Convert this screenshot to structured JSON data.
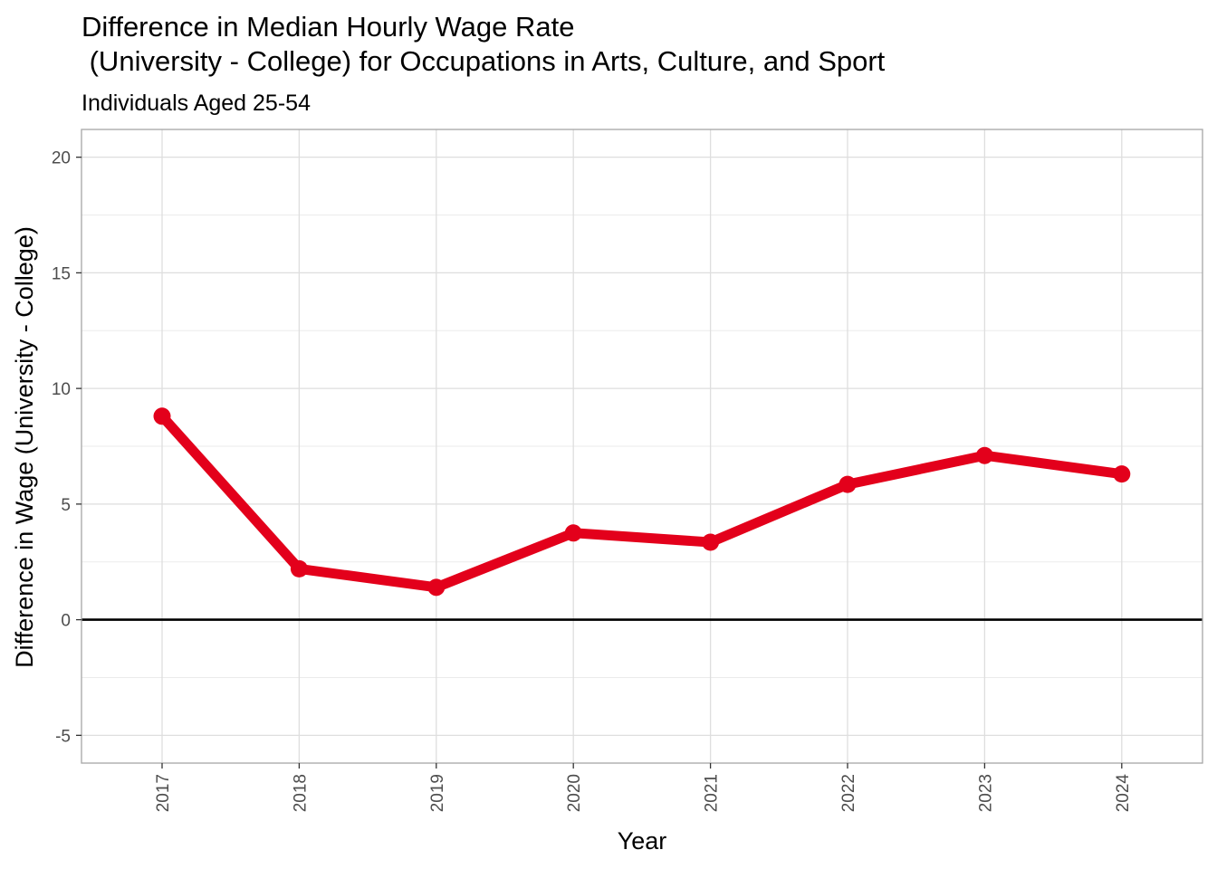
{
  "chart_data": {
    "type": "line",
    "title_line1": "Difference in Median Hourly Wage Rate",
    "title_line2": " (University - College) for Occupations in Arts, Culture, and Sport",
    "subtitle": "Individuals Aged 25-54",
    "xlabel": "Year",
    "ylabel": "Difference in Wage (University - College)",
    "x": [
      "2017",
      "2018",
      "2019",
      "2020",
      "2021",
      "2022",
      "2023",
      "2024"
    ],
    "series": [
      {
        "values": [
          8.8,
          2.2,
          1.4,
          3.75,
          3.35,
          5.85,
          7.1,
          6.3
        ],
        "color": "#e3001b"
      }
    ],
    "ylim": [
      -6.2,
      21.2
    ],
    "yticks": [
      -5,
      0,
      5,
      10,
      15,
      20
    ],
    "ytick_labels": [
      "-5",
      "0",
      "5",
      "10",
      "15",
      "20"
    ],
    "reference_line": 0,
    "grid": true,
    "colors": {
      "line": "#e3001b",
      "grid": "#dedede",
      "panel_border": "#a6a6a6",
      "zero_line": "#000000"
    }
  }
}
